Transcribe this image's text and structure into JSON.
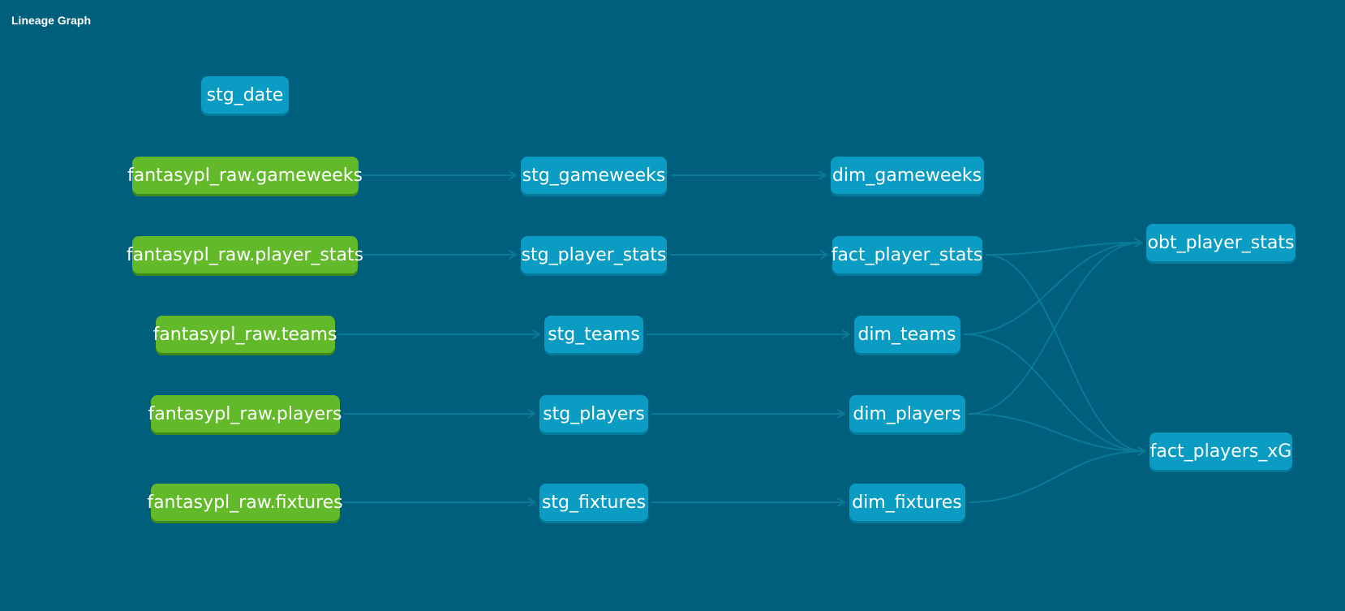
{
  "header": {
    "title": "Lineage Graph"
  },
  "colors": {
    "background": "#005f7d",
    "model": "#0a9cc2",
    "source": "#62b929",
    "edge": "#0a7a97"
  },
  "nodes": [
    {
      "id": "stg_date",
      "label": "stg_date",
      "type": "model"
    },
    {
      "id": "raw_gameweeks",
      "label": "fantasypl_raw.gameweeks",
      "type": "source"
    },
    {
      "id": "raw_player_stats",
      "label": "fantasypl_raw.player_stats",
      "type": "source"
    },
    {
      "id": "raw_teams",
      "label": "fantasypl_raw.teams",
      "type": "source"
    },
    {
      "id": "raw_players",
      "label": "fantasypl_raw.players",
      "type": "source"
    },
    {
      "id": "raw_fixtures",
      "label": "fantasypl_raw.fixtures",
      "type": "source"
    },
    {
      "id": "stg_gameweeks",
      "label": "stg_gameweeks",
      "type": "model"
    },
    {
      "id": "stg_player_stats",
      "label": "stg_player_stats",
      "type": "model"
    },
    {
      "id": "stg_teams",
      "label": "stg_teams",
      "type": "model"
    },
    {
      "id": "stg_players",
      "label": "stg_players",
      "type": "model"
    },
    {
      "id": "stg_fixtures",
      "label": "stg_fixtures",
      "type": "model"
    },
    {
      "id": "dim_gameweeks",
      "label": "dim_gameweeks",
      "type": "model"
    },
    {
      "id": "fact_player_stats",
      "label": "fact_player_stats",
      "type": "model"
    },
    {
      "id": "dim_teams",
      "label": "dim_teams",
      "type": "model"
    },
    {
      "id": "dim_players",
      "label": "dim_players",
      "type": "model"
    },
    {
      "id": "dim_fixtures",
      "label": "dim_fixtures",
      "type": "model"
    },
    {
      "id": "obt_player_stats",
      "label": "obt_player_stats",
      "type": "model"
    },
    {
      "id": "fact_players_xG",
      "label": "fact_players_xG",
      "type": "model"
    }
  ],
  "edges": [
    [
      "raw_gameweeks",
      "stg_gameweeks"
    ],
    [
      "raw_player_stats",
      "stg_player_stats"
    ],
    [
      "raw_teams",
      "stg_teams"
    ],
    [
      "raw_players",
      "stg_players"
    ],
    [
      "raw_fixtures",
      "stg_fixtures"
    ],
    [
      "stg_gameweeks",
      "dim_gameweeks"
    ],
    [
      "stg_player_stats",
      "fact_player_stats"
    ],
    [
      "stg_teams",
      "dim_teams"
    ],
    [
      "stg_players",
      "dim_players"
    ],
    [
      "stg_fixtures",
      "dim_fixtures"
    ],
    [
      "fact_player_stats",
      "obt_player_stats"
    ],
    [
      "dim_teams",
      "obt_player_stats"
    ],
    [
      "dim_players",
      "obt_player_stats"
    ],
    [
      "fact_player_stats",
      "fact_players_xG"
    ],
    [
      "dim_teams",
      "fact_players_xG"
    ],
    [
      "dim_players",
      "fact_players_xG"
    ],
    [
      "dim_fixtures",
      "fact_players_xG"
    ]
  ]
}
